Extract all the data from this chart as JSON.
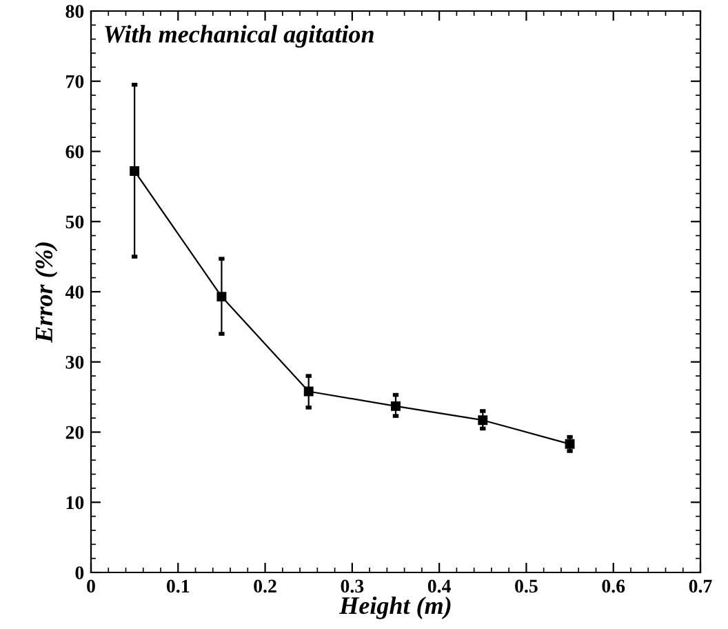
{
  "chart_data": {
    "type": "line",
    "title": "With mechanical agitation",
    "xlabel": "Height (m)",
    "ylabel": "Error (%)",
    "x": [
      0.05,
      0.15,
      0.25,
      0.35,
      0.45,
      0.55
    ],
    "series": [
      {
        "color": "#000000",
        "values": [
          57.2,
          39.3,
          25.8,
          23.7,
          21.7,
          18.3
        ],
        "errors": [
          [
            45,
            69.5
          ],
          [
            34,
            44.7
          ],
          [
            23.5,
            28
          ],
          [
            22.3,
            25.3
          ],
          [
            20.5,
            23
          ],
          [
            17.3,
            19.3
          ]
        ]
      }
    ],
    "xlim": [
      0,
      0.7
    ],
    "xticks": [
      0,
      0.1,
      0.2,
      0.3,
      0.4,
      0.5,
      0.6,
      0.7
    ],
    "ylim": [
      0,
      80
    ],
    "yticks": [
      0,
      10,
      20,
      30,
      40,
      50,
      60,
      70,
      80
    ],
    "marker": "square",
    "line_style": "solid",
    "grid": false,
    "legend": false
  }
}
